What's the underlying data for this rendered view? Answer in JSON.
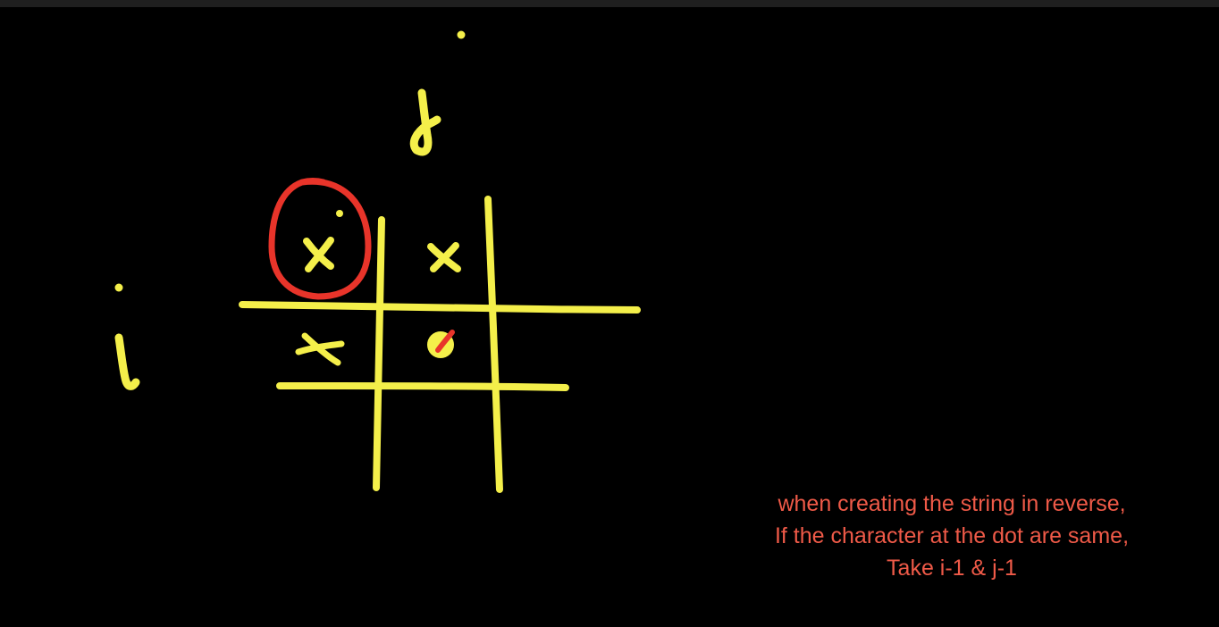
{
  "diagram": {
    "axis_labels": {
      "column": "j",
      "row": "i"
    },
    "cell_marks": {
      "r0c0": "x",
      "r0c1": "x",
      "r1c0": "x"
    },
    "colors": {
      "ink": "#f4ef4a",
      "highlight": "#e8342a",
      "background": "#000000",
      "note_text": "#ef5a48"
    }
  },
  "note": {
    "line1": "when creating the string in reverse,",
    "line2": "If the character at the dot are same,",
    "line3": "Take i-1 & j-1"
  }
}
